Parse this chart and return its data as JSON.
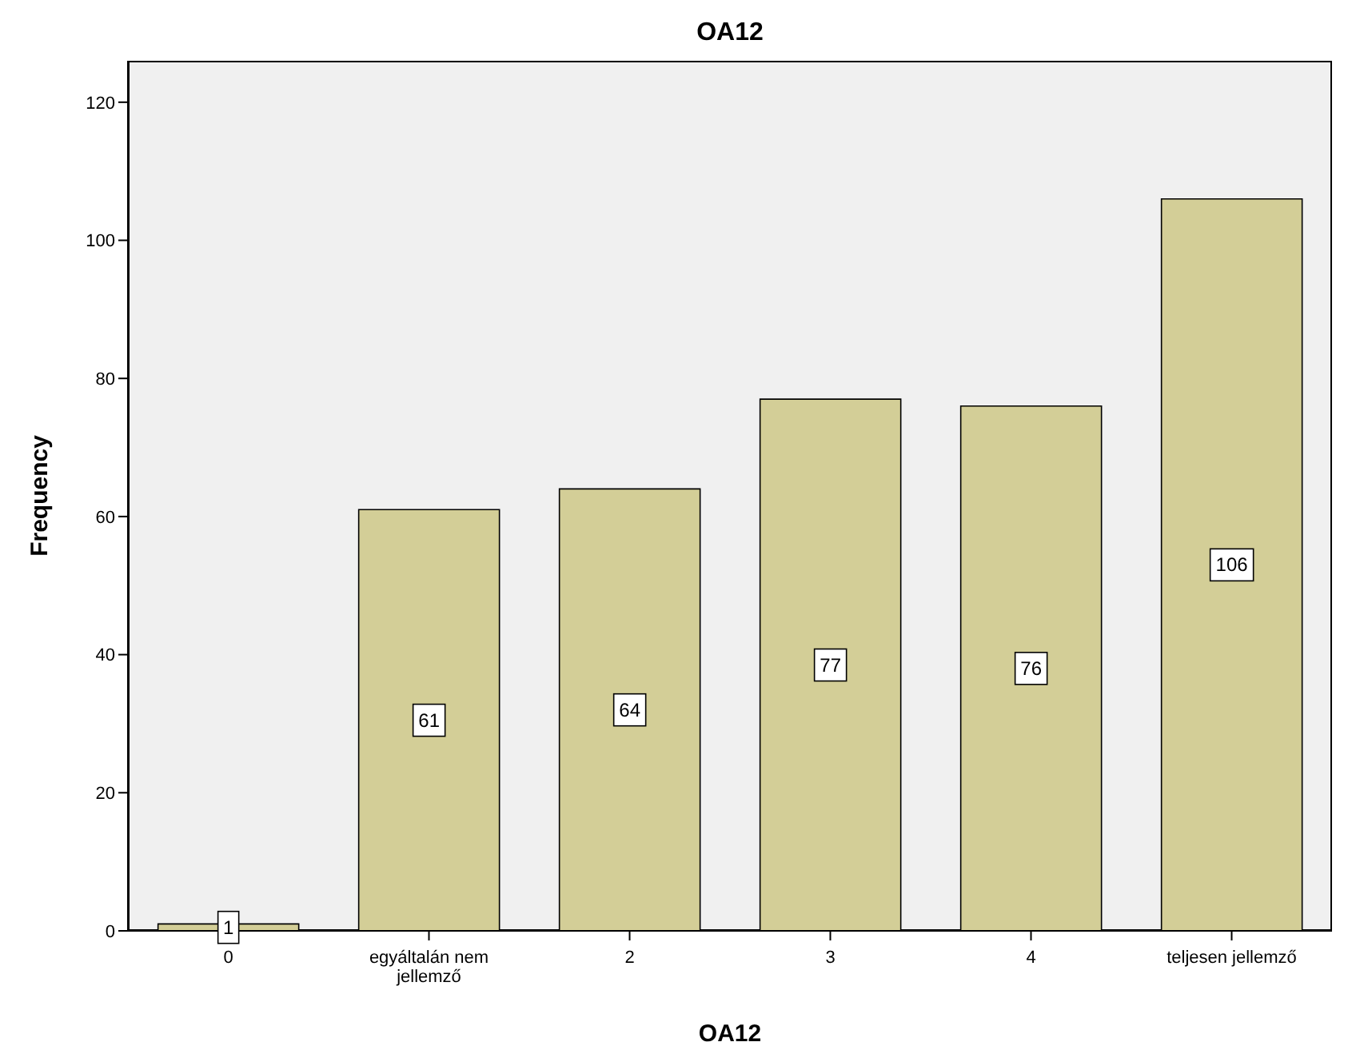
{
  "chart_data": {
    "type": "bar",
    "title": "OA12",
    "xlabel": "OA12",
    "ylabel": "Frequency",
    "categories": [
      "0",
      "egyáltalán nem jellemző",
      "2",
      "3",
      "4",
      "teljesen jellemző"
    ],
    "values": [
      1,
      61,
      64,
      77,
      76,
      106
    ],
    "color": "#d3ce97",
    "ylim": [
      0,
      126
    ],
    "yticks": [
      0,
      20,
      40,
      60,
      80,
      100,
      120
    ],
    "data_labels": true
  }
}
